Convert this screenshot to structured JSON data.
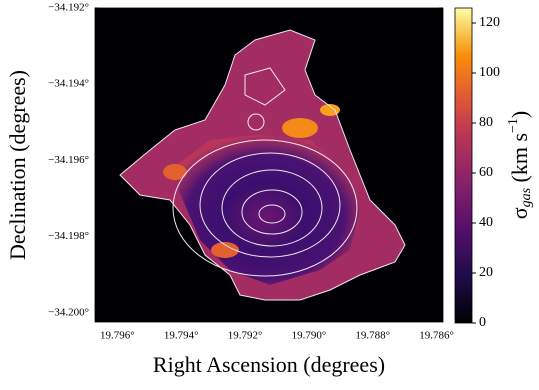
{
  "chart_data": {
    "type": "heatmap",
    "xlabel": "Right Ascension (degrees)",
    "ylabel": "Declination (degrees)",
    "xlim": [
      19.7967,
      19.7858
    ],
    "ylim": [
      -34.20024,
      -34.192
    ],
    "xticks": [
      {
        "value": 19.796,
        "label": "19.796°"
      },
      {
        "value": 19.794,
        "label": "19.794°"
      },
      {
        "value": 19.792,
        "label": "19.792°"
      },
      {
        "value": 19.79,
        "label": "19.790°"
      },
      {
        "value": 19.788,
        "label": "19.788°"
      },
      {
        "value": 19.786,
        "label": "19.786°"
      }
    ],
    "yticks": [
      {
        "value": -34.192,
        "label": "−34.192°"
      },
      {
        "value": -34.194,
        "label": "−34.194°"
      },
      {
        "value": -34.196,
        "label": "−34.196°"
      },
      {
        "value": -34.198,
        "label": "−34.198°"
      },
      {
        "value": -34.2,
        "label": "−34.200°"
      }
    ],
    "colormap": "inferno",
    "colorbar_lim": [
      0,
      126
    ],
    "colorbar_ticks": [
      0,
      20,
      40,
      60,
      80,
      100,
      120
    ],
    "colorbar_label": [
      "σ",
      "gas",
      " (km s",
      "−1",
      ")"
    ]
  }
}
